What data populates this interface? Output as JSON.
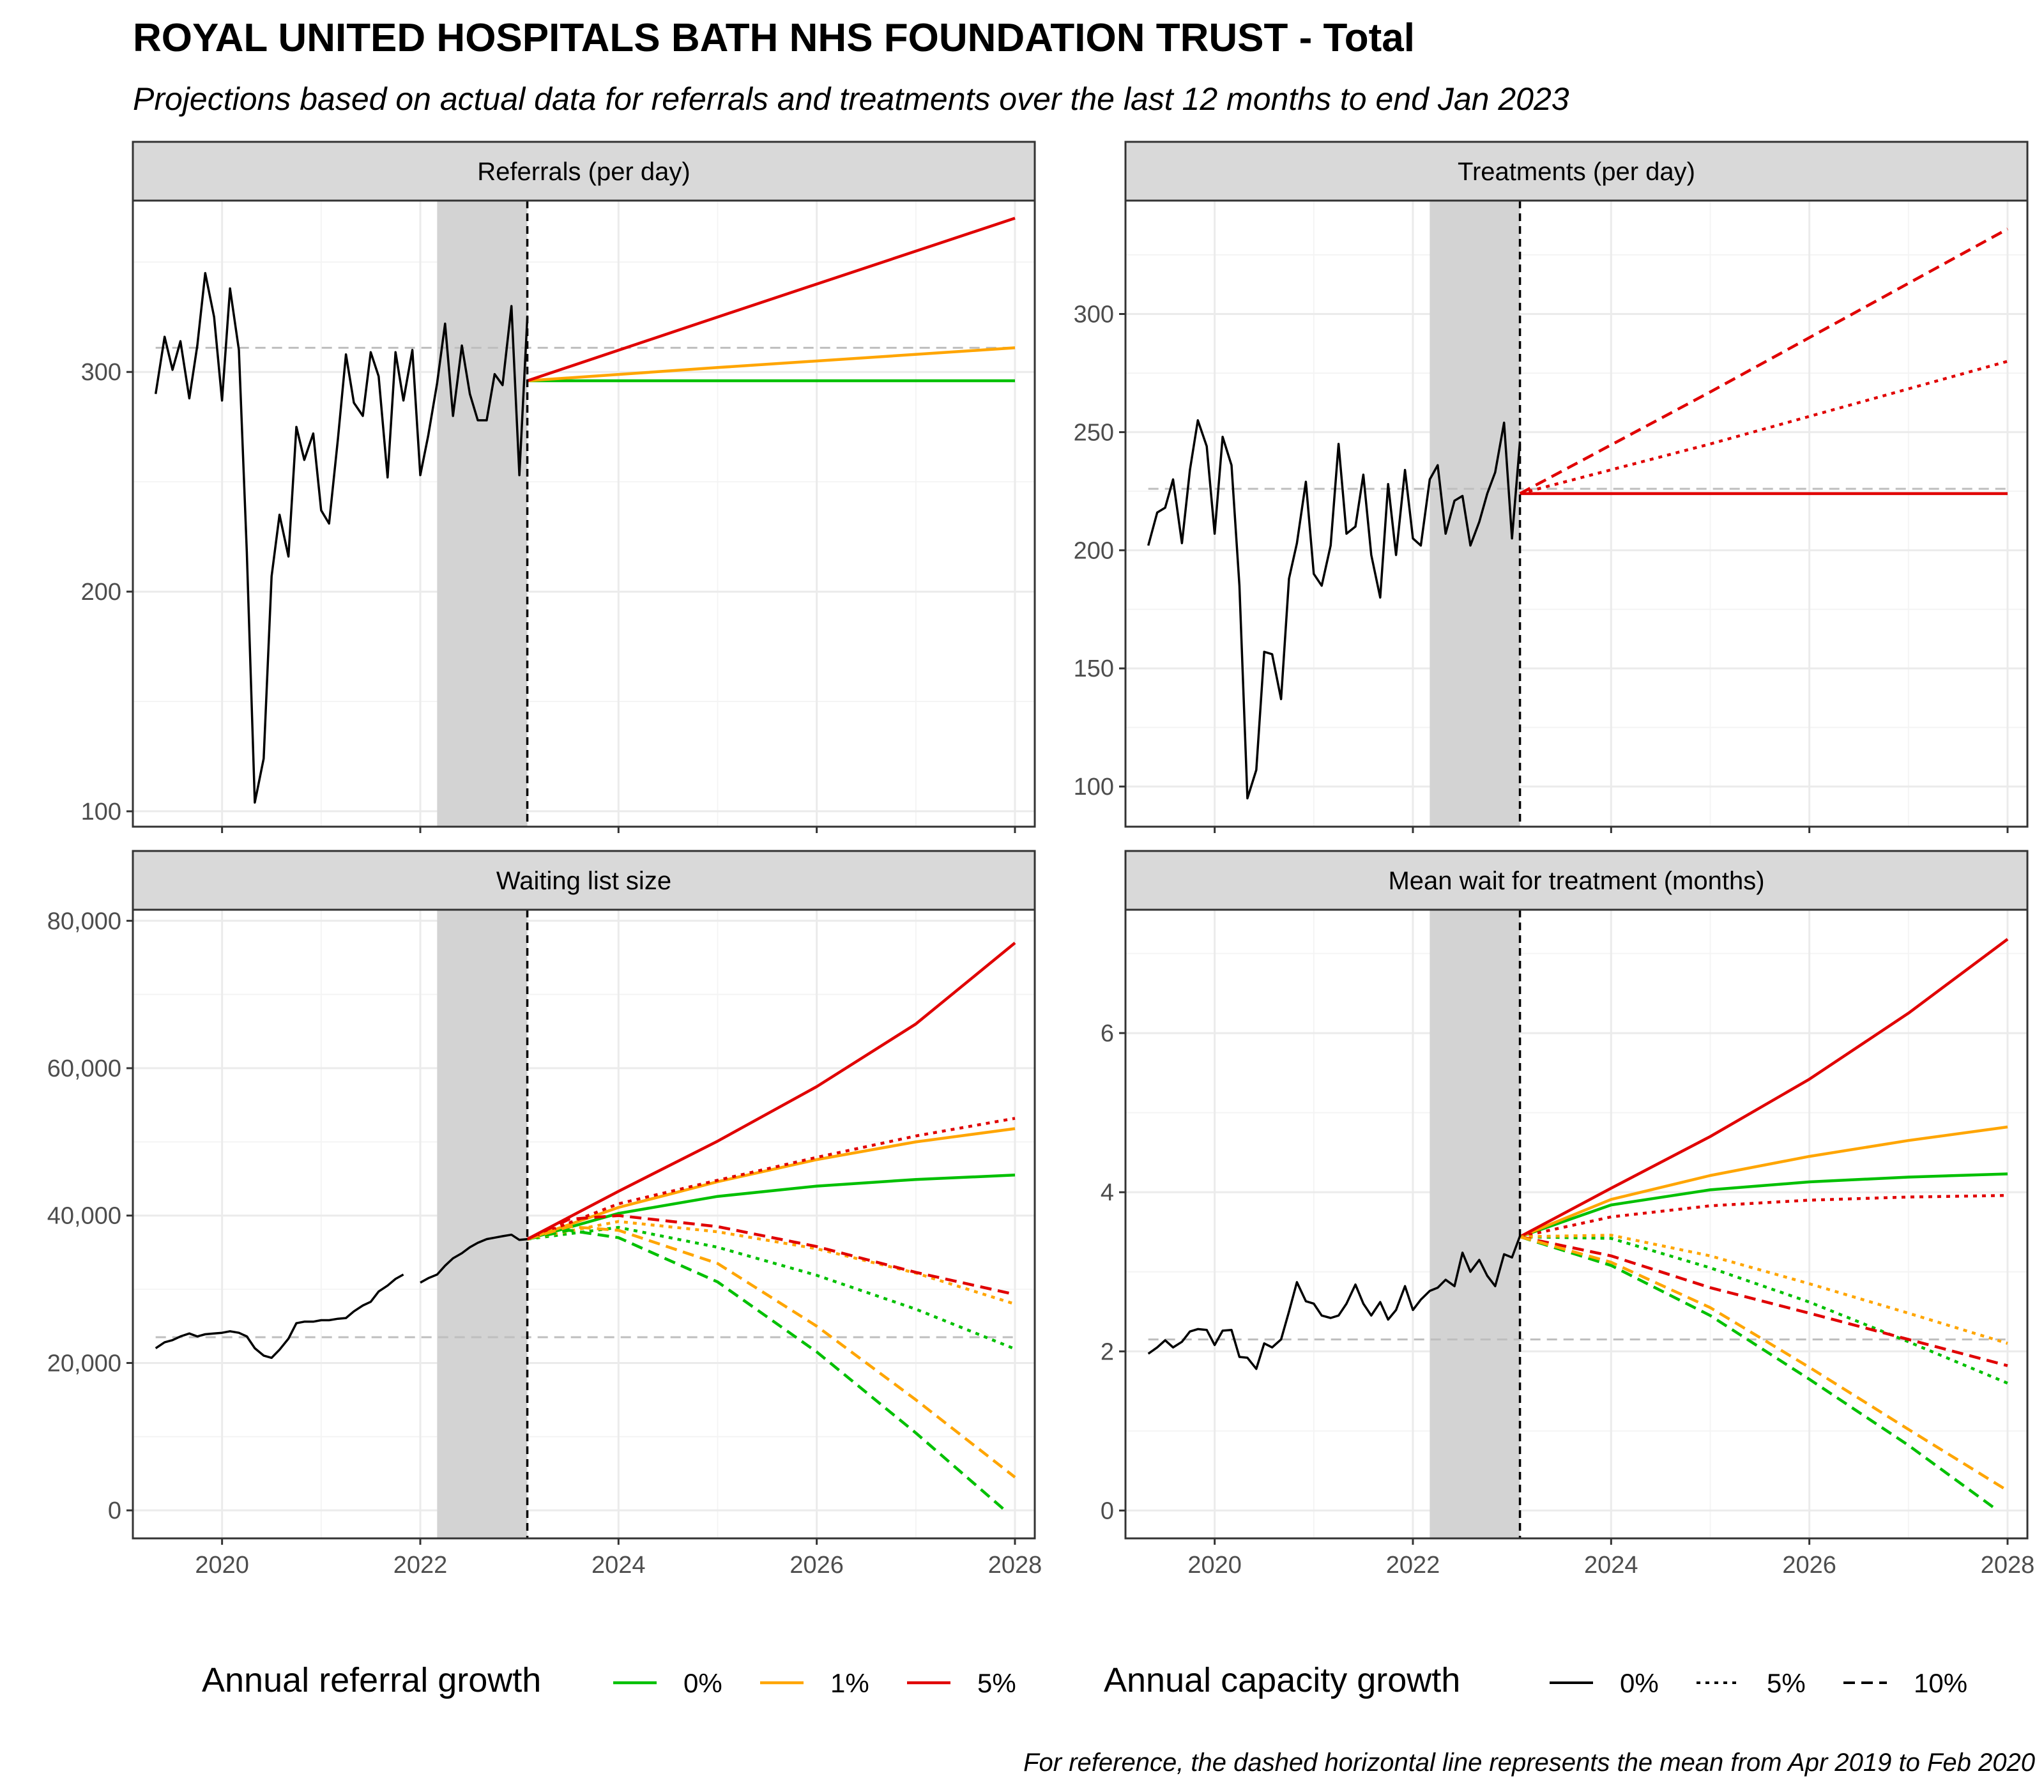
{
  "title": "ROYAL UNITED HOSPITALS BATH NHS FOUNDATION TRUST - Total",
  "subtitle": "Projections based on actual data for referrals and treatments over the last 12 months to end Jan 2023",
  "caption": "For reference, the dashed horizontal line represents the mean from Apr 2019 to Feb 2020",
  "colors": {
    "growth_0": "#00c000",
    "growth_1": "#ffa500",
    "growth_5": "#e00000",
    "observed": "#000000",
    "reference": "#bebebe",
    "shade": "#d3d3d3",
    "strip": "#d9d9d9",
    "grid_major": "#ebebeb",
    "grid_minor": "#f4f4f4"
  },
  "legend": {
    "referral_title": "Annual referral growth",
    "referral_items": [
      {
        "label": "0%",
        "color": "#00c000"
      },
      {
        "label": "1%",
        "color": "#ffa500"
      },
      {
        "label": "5%",
        "color": "#e00000"
      }
    ],
    "capacity_title": "Annual capacity growth",
    "capacity_items": [
      {
        "label": "0%",
        "dash": "solid"
      },
      {
        "label": "5%",
        "dash": "dotted"
      },
      {
        "label": "10%",
        "dash": "dashed"
      }
    ]
  },
  "chart_data": [
    {
      "type": "line",
      "panel": "Referrals (per day)",
      "xlim": [
        2019.1,
        2028.2
      ],
      "ylim": [
        93,
        378
      ],
      "x_ticks": [
        2020,
        2022,
        2024,
        2026,
        2028
      ],
      "y_ticks": [
        100,
        200,
        300
      ],
      "y_tick_labels": [
        "100",
        "200",
        "300"
      ],
      "shaded_period": [
        2022.17,
        2023.08
      ],
      "forecast_start": 2023.08,
      "reference_mean": 311,
      "observed": {
        "x": [
          2019.33,
          2019.42,
          2019.5,
          2019.58,
          2019.67,
          2019.75,
          2019.83,
          2019.92,
          2020.0,
          2020.08,
          2020.17,
          2020.25,
          2020.33,
          2020.42,
          2020.5,
          2020.58,
          2020.67,
          2020.75,
          2020.83,
          2020.92,
          2021.0,
          2021.08,
          2021.17,
          2021.25,
          2021.33,
          2021.42,
          2021.5,
          2021.58,
          2021.67,
          2021.75,
          2021.83,
          2021.92,
          2022.0,
          2022.08,
          2022.17,
          2022.25,
          2022.33,
          2022.42,
          2022.5,
          2022.58,
          2022.67,
          2022.75,
          2022.83,
          2022.92,
          2023.0,
          2023.08
        ],
        "y": [
          290,
          316,
          301,
          314,
          288,
          312,
          345,
          325,
          287,
          338,
          310,
          218,
          104,
          124,
          207,
          235,
          216,
          275,
          260,
          272,
          237,
          231,
          270,
          308,
          286,
          280,
          309,
          298,
          252,
          309,
          287,
          310,
          253,
          271,
          295,
          322,
          280,
          312,
          290,
          278,
          278,
          299,
          294,
          330,
          253,
          325
        ]
      },
      "series": [
        {
          "referral_growth": "0%",
          "capacity_growth": "0%",
          "x": [
            2023.08,
            2025.0,
            2028.0
          ],
          "y": [
            296,
            296,
            296
          ]
        },
        {
          "referral_growth": "1%",
          "capacity_growth": "0%",
          "x": [
            2023.08,
            2025.0,
            2028.0
          ],
          "y": [
            296,
            302,
            311
          ]
        },
        {
          "referral_growth": "5%",
          "capacity_growth": "0%",
          "x": [
            2023.08,
            2025.0,
            2028.0
          ],
          "y": [
            296,
            325,
            370
          ]
        }
      ]
    },
    {
      "type": "line",
      "panel": "Treatments (per day)",
      "xlim": [
        2019.1,
        2028.2
      ],
      "ylim": [
        83,
        348
      ],
      "x_ticks": [
        2020,
        2022,
        2024,
        2026,
        2028
      ],
      "y_ticks": [
        100,
        150,
        200,
        250,
        300
      ],
      "y_tick_labels": [
        "100",
        "150",
        "200",
        "250",
        "300"
      ],
      "shaded_period": [
        2022.17,
        2023.08
      ],
      "forecast_start": 2023.08,
      "reference_mean": 226,
      "observed": {
        "x": [
          2019.33,
          2019.42,
          2019.5,
          2019.58,
          2019.67,
          2019.75,
          2019.83,
          2019.92,
          2020.0,
          2020.08,
          2020.17,
          2020.25,
          2020.33,
          2020.42,
          2020.5,
          2020.58,
          2020.67,
          2020.75,
          2020.83,
          2020.92,
          2021.0,
          2021.08,
          2021.17,
          2021.25,
          2021.33,
          2021.42,
          2021.5,
          2021.58,
          2021.67,
          2021.75,
          2021.83,
          2021.92,
          2022.0,
          2022.08,
          2022.17,
          2022.25,
          2022.33,
          2022.42,
          2022.5,
          2022.58,
          2022.67,
          2022.75,
          2022.83,
          2022.92,
          2023.0,
          2023.08
        ],
        "y": [
          202,
          216,
          218,
          230,
          203,
          234,
          255,
          244,
          207,
          248,
          236,
          185,
          95,
          107,
          157,
          156,
          137,
          188,
          203,
          229,
          190,
          185,
          202,
          245,
          207,
          210,
          232,
          198,
          180,
          228,
          198,
          234,
          205,
          202,
          230,
          236,
          207,
          221,
          223,
          202,
          212,
          224,
          233,
          254,
          205,
          246
        ]
      },
      "series": [
        {
          "referral_growth": "5%",
          "capacity_growth": "0%",
          "x": [
            2023.08,
            2028.0
          ],
          "y": [
            224,
            224
          ]
        },
        {
          "referral_growth": "5%",
          "capacity_growth": "5%",
          "x": [
            2023.08,
            2025.0,
            2028.0
          ],
          "y": [
            224,
            245,
            280
          ]
        },
        {
          "referral_growth": "5%",
          "capacity_growth": "10%",
          "x": [
            2023.08,
            2025.0,
            2028.0
          ],
          "y": [
            224,
            267,
            336
          ]
        }
      ]
    },
    {
      "type": "line",
      "panel": "Waiting list size",
      "xlim": [
        2019.1,
        2028.2
      ],
      "ylim": [
        -3800,
        81500
      ],
      "x_ticks": [
        2020,
        2022,
        2024,
        2026,
        2028
      ],
      "x_tick_labels": [
        "2020",
        "2022",
        "2024",
        "2026",
        "2028"
      ],
      "y_ticks": [
        0,
        20000,
        40000,
        60000,
        80000
      ],
      "y_tick_labels": [
        "0",
        "20,000",
        "40,000",
        "60,000",
        "80,000"
      ],
      "shaded_period": [
        2022.17,
        2023.08
      ],
      "forecast_start": 2023.08,
      "reference_mean": 23500,
      "observed_segments": [
        {
          "x": [
            2019.33,
            2019.42,
            2019.5,
            2019.58,
            2019.67,
            2019.75,
            2019.83,
            2019.92,
            2020.0,
            2020.08,
            2020.17,
            2020.25,
            2020.33,
            2020.42,
            2020.5,
            2020.58,
            2020.67,
            2020.75,
            2020.83,
            2020.92,
            2021.0,
            2021.08,
            2021.17,
            2021.25,
            2021.33,
            2021.42,
            2021.5,
            2021.58,
            2021.67,
            2021.75,
            2021.83
          ],
          "y": [
            22000,
            22800,
            23100,
            23600,
            24000,
            23600,
            23900,
            24000,
            24100,
            24300,
            24100,
            23600,
            22000,
            21000,
            20700,
            21800,
            23300,
            25400,
            25600,
            25600,
            25800,
            25800,
            26000,
            26100,
            27000,
            27800,
            28300,
            29700,
            30500,
            31400,
            32000
          ]
        },
        {
          "x": [
            2022.0,
            2022.08,
            2022.17,
            2022.25,
            2022.33,
            2022.42,
            2022.5,
            2022.58,
            2022.67,
            2022.75,
            2022.83,
            2022.92,
            2023.0,
            2023.08
          ],
          "y": [
            30900,
            31500,
            32000,
            33200,
            34200,
            34900,
            35700,
            36300,
            36800,
            37000,
            37200,
            37400,
            36700,
            36800
          ]
        }
      ],
      "series": [
        {
          "referral_growth": "0%",
          "capacity_growth": "0%",
          "x": [
            2023.08,
            2024.0,
            2025.0,
            2026.0,
            2027.0,
            2028.0
          ],
          "y": [
            36800,
            40300,
            42600,
            44000,
            44900,
            45500
          ]
        },
        {
          "referral_growth": "1%",
          "capacity_growth": "0%",
          "x": [
            2023.08,
            2024.0,
            2025.0,
            2026.0,
            2027.0,
            2028.0
          ],
          "y": [
            36800,
            41100,
            44600,
            47600,
            50000,
            51800
          ]
        },
        {
          "referral_growth": "5%",
          "capacity_growth": "0%",
          "x": [
            2023.08,
            2024.0,
            2025.0,
            2026.0,
            2027.0,
            2028.0
          ],
          "y": [
            36800,
            43300,
            50100,
            57500,
            66000,
            77000
          ]
        },
        {
          "referral_growth": "0%",
          "capacity_growth": "5%",
          "x": [
            2023.08,
            2024.0,
            2025.0,
            2026.0,
            2027.0,
            2028.0
          ],
          "y": [
            36800,
            38400,
            35700,
            31900,
            27300,
            21900
          ]
        },
        {
          "referral_growth": "1%",
          "capacity_growth": "5%",
          "x": [
            2023.08,
            2024.0,
            2025.0,
            2026.0,
            2027.0,
            2028.0
          ],
          "y": [
            36800,
            39200,
            37800,
            35500,
            32200,
            28000
          ]
        },
        {
          "referral_growth": "5%",
          "capacity_growth": "5%",
          "x": [
            2023.08,
            2024.0,
            2025.0,
            2026.0,
            2027.0,
            2028.0
          ],
          "y": [
            36800,
            41600,
            44800,
            47900,
            50800,
            53200
          ]
        },
        {
          "referral_growth": "0%",
          "capacity_growth": "10%",
          "x": [
            2023.08,
            2023.5,
            2024.0,
            2025.0,
            2026.0,
            2027.0,
            2027.9
          ],
          "y": [
            36800,
            38000,
            37000,
            31000,
            21500,
            10500,
            0
          ]
        },
        {
          "referral_growth": "1%",
          "capacity_growth": "10%",
          "x": [
            2023.08,
            2023.5,
            2024.0,
            2025.0,
            2026.0,
            2027.0,
            2028.0
          ],
          "y": [
            36800,
            38500,
            38000,
            33500,
            25000,
            15000,
            4500
          ]
        },
        {
          "referral_growth": "5%",
          "capacity_growth": "10%",
          "x": [
            2023.08,
            2023.5,
            2024.0,
            2025.0,
            2026.0,
            2027.0,
            2028.0
          ],
          "y": [
            36800,
            39500,
            40000,
            38500,
            35800,
            32300,
            29300
          ]
        }
      ]
    },
    {
      "type": "line",
      "panel": "Mean wait for treatment (months)",
      "xlim": [
        2019.1,
        2028.2
      ],
      "ylim": [
        -0.35,
        7.55
      ],
      "x_ticks": [
        2020,
        2022,
        2024,
        2026,
        2028
      ],
      "x_tick_labels": [
        "2020",
        "2022",
        "2024",
        "2026",
        "2028"
      ],
      "y_ticks": [
        0,
        2,
        4,
        6
      ],
      "y_tick_labels": [
        "0",
        "2",
        "4",
        "6"
      ],
      "shaded_period": [
        2022.17,
        2023.08
      ],
      "forecast_start": 2023.08,
      "reference_mean": 2.15,
      "observed": {
        "x": [
          2019.33,
          2019.42,
          2019.5,
          2019.58,
          2019.67,
          2019.75,
          2019.83,
          2019.92,
          2020.0,
          2020.08,
          2020.17,
          2020.25,
          2020.33,
          2020.42,
          2020.5,
          2020.58,
          2020.67,
          2020.75,
          2020.83,
          2020.92,
          2021.0,
          2021.08,
          2021.17,
          2021.25,
          2021.33,
          2021.42,
          2021.5,
          2021.58,
          2021.67,
          2021.75,
          2021.83,
          2021.92,
          2022.0,
          2022.08,
          2022.17,
          2022.25,
          2022.33,
          2022.42,
          2022.5,
          2022.58,
          2022.67,
          2022.75,
          2022.83,
          2022.92,
          2023.0,
          2023.08
        ],
        "y": [
          1.97,
          2.05,
          2.14,
          2.05,
          2.12,
          2.25,
          2.28,
          2.27,
          2.08,
          2.26,
          2.27,
          1.93,
          1.92,
          1.78,
          2.1,
          2.05,
          2.15,
          2.5,
          2.87,
          2.63,
          2.6,
          2.45,
          2.42,
          2.45,
          2.6,
          2.84,
          2.6,
          2.45,
          2.62,
          2.4,
          2.52,
          2.82,
          2.52,
          2.65,
          2.76,
          2.8,
          2.9,
          2.82,
          3.24,
          3.0,
          3.15,
          2.95,
          2.82,
          3.22,
          3.18,
          3.45
        ]
      },
      "series": [
        {
          "referral_growth": "0%",
          "capacity_growth": "0%",
          "x": [
            2023.08,
            2024.0,
            2025.0,
            2026.0,
            2027.0,
            2028.0
          ],
          "y": [
            3.44,
            3.84,
            4.03,
            4.13,
            4.19,
            4.23
          ]
        },
        {
          "referral_growth": "1%",
          "capacity_growth": "0%",
          "x": [
            2023.08,
            2024.0,
            2025.0,
            2026.0,
            2027.0,
            2028.0
          ],
          "y": [
            3.44,
            3.91,
            4.21,
            4.45,
            4.65,
            4.82
          ]
        },
        {
          "referral_growth": "5%",
          "capacity_growth": "0%",
          "x": [
            2023.08,
            2024.0,
            2025.0,
            2026.0,
            2027.0,
            2028.0
          ],
          "y": [
            3.44,
            4.05,
            4.7,
            5.42,
            6.25,
            7.18
          ]
        },
        {
          "referral_growth": "5%",
          "capacity_growth": "5%",
          "x": [
            2023.08,
            2024.0,
            2025.0,
            2026.0,
            2027.0,
            2028.0
          ],
          "y": [
            3.44,
            3.69,
            3.83,
            3.9,
            3.94,
            3.96
          ]
        },
        {
          "referral_growth": "0%",
          "capacity_growth": "5%",
          "x": [
            2023.08,
            2024.0,
            2025.0,
            2026.0,
            2027.0,
            2028.0
          ],
          "y": [
            3.44,
            3.42,
            3.05,
            2.62,
            2.12,
            1.6
          ]
        },
        {
          "referral_growth": "1%",
          "capacity_growth": "5%",
          "x": [
            2023.08,
            2024.0,
            2025.0,
            2026.0,
            2027.0,
            2028.0
          ],
          "y": [
            3.44,
            3.46,
            3.2,
            2.85,
            2.48,
            2.1
          ]
        },
        {
          "referral_growth": "5%",
          "capacity_growth": "10%",
          "x": [
            2023.08,
            2024.0,
            2025.0,
            2026.0,
            2027.0,
            2028.0
          ],
          "y": [
            3.44,
            3.2,
            2.8,
            2.48,
            2.15,
            1.82
          ]
        },
        {
          "referral_growth": "0%",
          "capacity_growth": "10%",
          "x": [
            2023.08,
            2024.0,
            2025.0,
            2026.0,
            2027.0,
            2027.9
          ],
          "y": [
            3.44,
            3.08,
            2.45,
            1.65,
            0.82,
            0.0
          ]
        },
        {
          "referral_growth": "1%",
          "capacity_growth": "10%",
          "x": [
            2023.08,
            2024.0,
            2025.0,
            2026.0,
            2027.0,
            2028.0
          ],
          "y": [
            3.44,
            3.12,
            2.55,
            1.8,
            1.02,
            0.25
          ]
        }
      ]
    }
  ]
}
